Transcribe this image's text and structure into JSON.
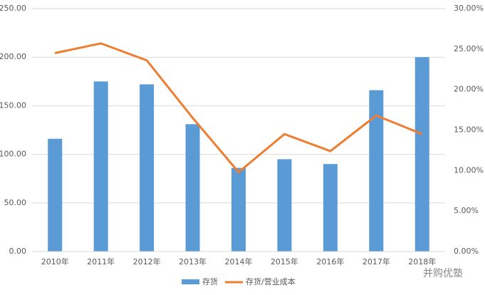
{
  "chart_data": {
    "type": "combo",
    "categories": [
      "2010年",
      "2011年",
      "2012年",
      "2013年",
      "2014年",
      "2015年",
      "2016年",
      "2017年",
      "2018年"
    ],
    "series": [
      {
        "name": "存货",
        "type": "bar",
        "color": "#5b9bd5",
        "values": [
          116,
          175,
          172,
          131,
          86,
          95,
          90,
          166,
          200
        ]
      },
      {
        "name": "存货/营业成本",
        "type": "line",
        "axis": "y2",
        "color": "#ed7d31",
        "values": [
          24.5,
          25.7,
          23.6,
          16.5,
          9.8,
          14.5,
          12.4,
          16.8,
          14.5
        ]
      }
    ],
    "ylim": [
      0,
      250
    ],
    "yticks": [
      {
        "value": 0,
        "label": "0.00"
      },
      {
        "value": 50,
        "label": "50.00"
      },
      {
        "value": 100,
        "label": "100.00"
      },
      {
        "value": 150,
        "label": "150.00"
      },
      {
        "value": 200,
        "label": "200.00"
      },
      {
        "value": 250,
        "label": "250.00"
      }
    ],
    "y2lim": [
      0,
      30
    ],
    "y2ticks": [
      {
        "value": 0,
        "label": "0.00%"
      },
      {
        "value": 5,
        "label": "5.00%"
      },
      {
        "value": 10,
        "label": "10.00%"
      },
      {
        "value": 15,
        "label": "15.00%"
      },
      {
        "value": 20,
        "label": "20.00%"
      },
      {
        "value": 25,
        "label": "25.00%"
      },
      {
        "value": 30,
        "label": "30.00%"
      }
    ],
    "grid": true,
    "legend": "bottom",
    "watermark": "并购优塾"
  }
}
